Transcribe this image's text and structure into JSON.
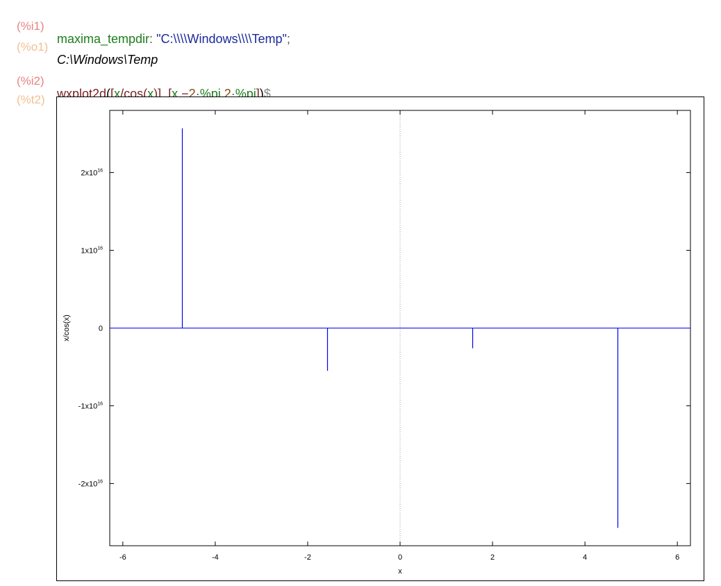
{
  "cells": [
    {
      "input_label": "(%i1)",
      "input_tokens": [
        {
          "text": "maxima_tempdir",
          "cls": "c-fn"
        },
        {
          "text": ": ",
          "cls": "c-op"
        },
        {
          "text": "\"C:\\\\\\\\Windows\\\\\\\\Temp\"",
          "cls": "c-str"
        },
        {
          "text": ";",
          "cls": "c-op"
        }
      ],
      "output_label": "(%o1)",
      "output_text": "C:\\Windows\\Temp"
    },
    {
      "input_label": "(%i2)",
      "input_tokens": [
        {
          "text": "wxplot2d",
          "cls": "c-fn2"
        },
        {
          "text": "(",
          "cls": "c-plain"
        },
        {
          "text": "[",
          "cls": "c-fn2"
        },
        {
          "text": "x",
          "cls": "c-var"
        },
        {
          "text": "/",
          "cls": "c-fn2"
        },
        {
          "text": "cos",
          "cls": "c-fn2"
        },
        {
          "text": "(",
          "cls": "c-fn2"
        },
        {
          "text": "x",
          "cls": "c-var"
        },
        {
          "text": ")",
          "cls": "c-fn2"
        },
        {
          "text": "]",
          "cls": "c-fn2"
        },
        {
          "text": ", ",
          "cls": "c-plain"
        },
        {
          "text": "[",
          "cls": "c-fn2"
        },
        {
          "text": "x",
          "cls": "c-var"
        },
        {
          "text": ",",
          "cls": "c-fn2"
        },
        {
          "text": "−",
          "cls": "c-fn2"
        },
        {
          "text": "2",
          "cls": "c-num"
        },
        {
          "text": "·",
          "cls": "c-op"
        },
        {
          "text": "%pi",
          "cls": "c-const"
        },
        {
          "text": ",",
          "cls": "c-fn2"
        },
        {
          "text": "2",
          "cls": "c-num"
        },
        {
          "text": "·",
          "cls": "c-op"
        },
        {
          "text": "%pi",
          "cls": "c-const"
        },
        {
          "text": "]",
          "cls": "c-fn2"
        },
        {
          "text": ")",
          "cls": "c-plain"
        },
        {
          "text": "$",
          "cls": "c-dollar"
        }
      ],
      "output_label": "(%t2)"
    }
  ],
  "chart_data": {
    "type": "line",
    "title": "",
    "xlabel": "x",
    "ylabel": "x/cos(x)",
    "xlim": [
      -6.2832,
      6.2832
    ],
    "ylim": [
      -2.8e+16,
      2.8e+16
    ],
    "x_ticks": [
      -6,
      -4,
      -2,
      0,
      2,
      4,
      6
    ],
    "x_tick_labels": [
      "-6",
      "-4",
      "-2",
      "0",
      "2",
      "4",
      "6"
    ],
    "y_ticks": [
      {
        "value": 2e+16,
        "base": "2x10",
        "exp": "16"
      },
      {
        "value": 1e+16,
        "base": "1x10",
        "exp": "16"
      },
      {
        "value": 0,
        "base": "0",
        "exp": ""
      },
      {
        "value": -1e+16,
        "base": "-1x10",
        "exp": "16"
      },
      {
        "value": -2e+16,
        "base": "-2x10",
        "exp": "16"
      }
    ],
    "zero_axis_x": 0,
    "series": [
      {
        "color": "#0000ee",
        "baseline": 0,
        "spikes": [
          {
            "x": -4.7124,
            "y": 2.57e+16
          },
          {
            "x": -1.5708,
            "y": -5500000000000000.0
          },
          {
            "x": 1.5708,
            "y": -2600000000000000.0
          },
          {
            "x": 4.7124,
            "y": -2.57e+16
          }
        ]
      }
    ],
    "grid": false
  }
}
